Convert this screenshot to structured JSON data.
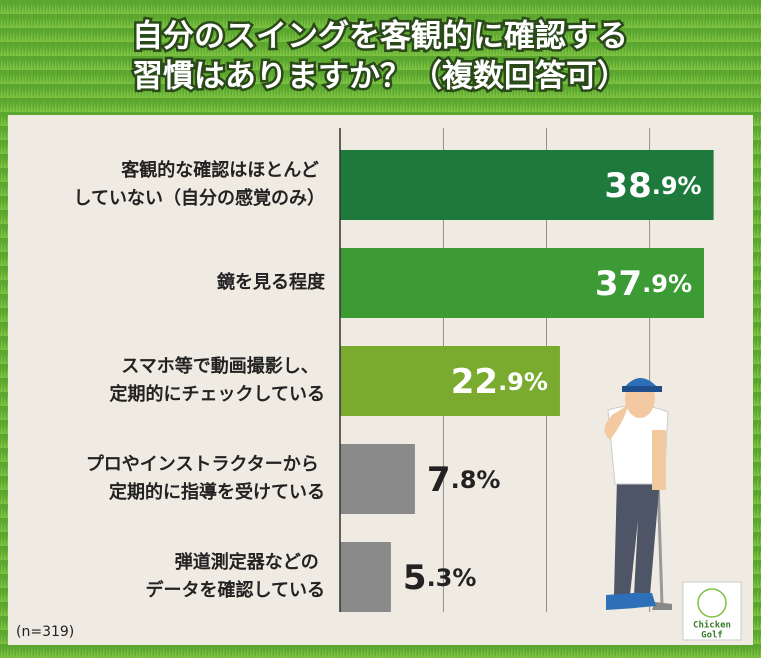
{
  "chart_data": {
    "type": "bar",
    "orientation": "horizontal",
    "title": [
      "自分のスイングを客観的に確認する",
      "習慣はありますか？（複数回答可）"
    ],
    "categories": [
      "客観的な確認はほとんど\nしていない（自分の感覚のみ）",
      "鏡を見る程度",
      "スマホ等で動画撮影し、\n定期的にチェックしている",
      "プロやインストラクターから\n定期的に指導を受けている",
      "弾道測定器などの\nデータを確認している"
    ],
    "values": [
      38.9,
      37.9,
      22.9,
      7.8,
      5.3
    ],
    "value_labels": [
      "38.9%",
      "37.9%",
      "22.9%",
      "7.8%",
      "5.3%"
    ],
    "colors": [
      "#1e7a3c",
      "#3c9b35",
      "#7aab2f",
      "#8a8a8a",
      "#8a8a8a"
    ],
    "xlim": [
      0,
      43
    ],
    "grid": true,
    "note": "(n=319)",
    "logo": [
      "Chicken",
      "Golf"
    ]
  }
}
